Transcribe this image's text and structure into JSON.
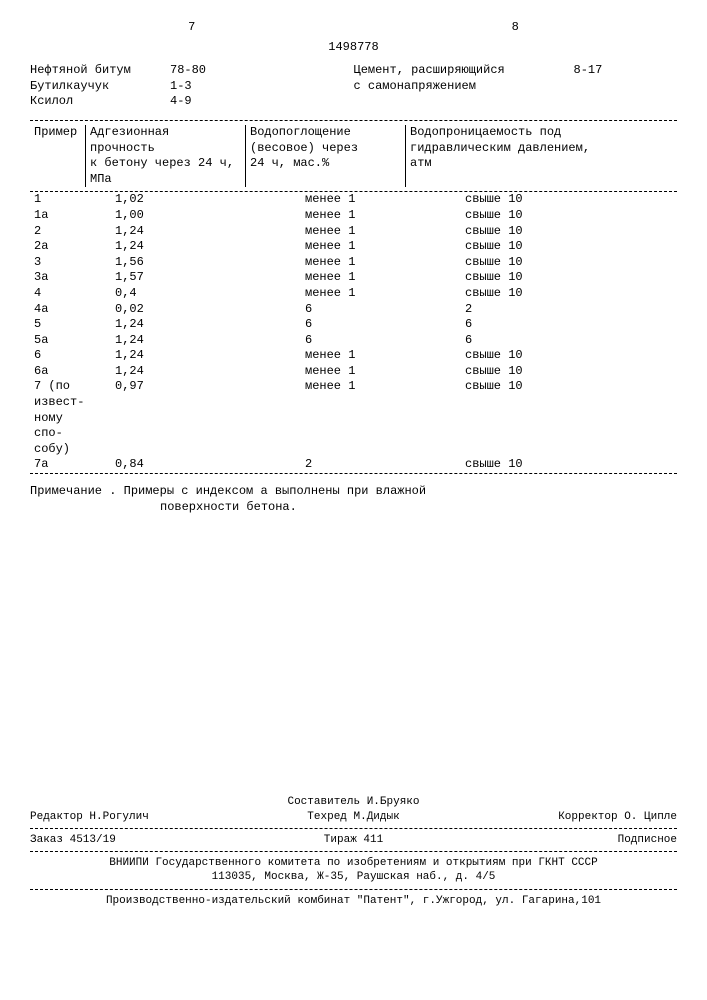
{
  "page_left": "7",
  "page_right": "8",
  "doc_number": "1498778",
  "materials_left": [
    {
      "name": "Нефтяной битум",
      "value": "78-80"
    },
    {
      "name": "Бутилкаучук",
      "value": "1-3"
    },
    {
      "name": "Ксилол",
      "value": "4-9"
    }
  ],
  "materials_right": [
    {
      "name": "Цемент, расширяющийся\nс самонапряжением",
      "value": "8-17"
    }
  ],
  "table": {
    "headers": [
      "Пример",
      "Адгезионная прочность\nк бетону через 24 ч,\nМПа",
      "Водопоглощение\n(весовое) через\n24 ч, мас.%",
      "Водопроницаемость под\nгидравлическим давлением,\nатм"
    ],
    "rows": [
      [
        "1",
        "1,02",
        "менее 1",
        "свыше 10"
      ],
      [
        "1а",
        "1,00",
        "менее 1",
        "свыше 10"
      ],
      [
        "2",
        "1,24",
        "менее 1",
        "свыше 10"
      ],
      [
        "2а",
        "1,24",
        "менее 1",
        "свыше 10"
      ],
      [
        "3",
        "1,56",
        "менее 1",
        "свыше 10"
      ],
      [
        "3а",
        "1,57",
        "менее 1",
        "свыше 10"
      ],
      [
        "4",
        "0,4",
        "менее 1",
        "свыше 10"
      ],
      [
        "4а",
        "0,02",
        "6",
        "2"
      ],
      [
        "5",
        "1,24",
        "6",
        "6"
      ],
      [
        "5а",
        "1,24",
        "6",
        "6"
      ],
      [
        "6",
        "1,24",
        "менее 1",
        "свыше 10"
      ],
      [
        "6а",
        "1,24",
        "менее 1",
        "свыше 10"
      ],
      [
        "7 (по извест-\nному спо-\nсобу)",
        "0,97",
        "менее 1",
        "свыше 10"
      ],
      [
        "7а",
        "0,84",
        "2",
        "свыше 10"
      ]
    ]
  },
  "note_label": "Примечание .",
  "note_text1": "Примеры с индексом а выполнены при влажной",
  "note_text2": "поверхности бетона.",
  "footer": {
    "compiler": "Составитель И.Бруяко",
    "editor": "Редактор Н.Рогулич",
    "techred": "Техред М.Дидык",
    "corrector": "Корректор О. Ципле",
    "order": "Заказ 4513/19",
    "tirazh": "Тираж 411",
    "podpis": "Подписное",
    "org1": "ВНИИПИ Государственного комитета по изобретениям и открытиям при ГКНТ СССР",
    "org2": "113035, Москва, Ж-35, Раушская наб., д. 4/5",
    "prod": "Производственно-издательский комбинат \"Патент\", г.Ужгород, ул. Гагарина,101"
  }
}
